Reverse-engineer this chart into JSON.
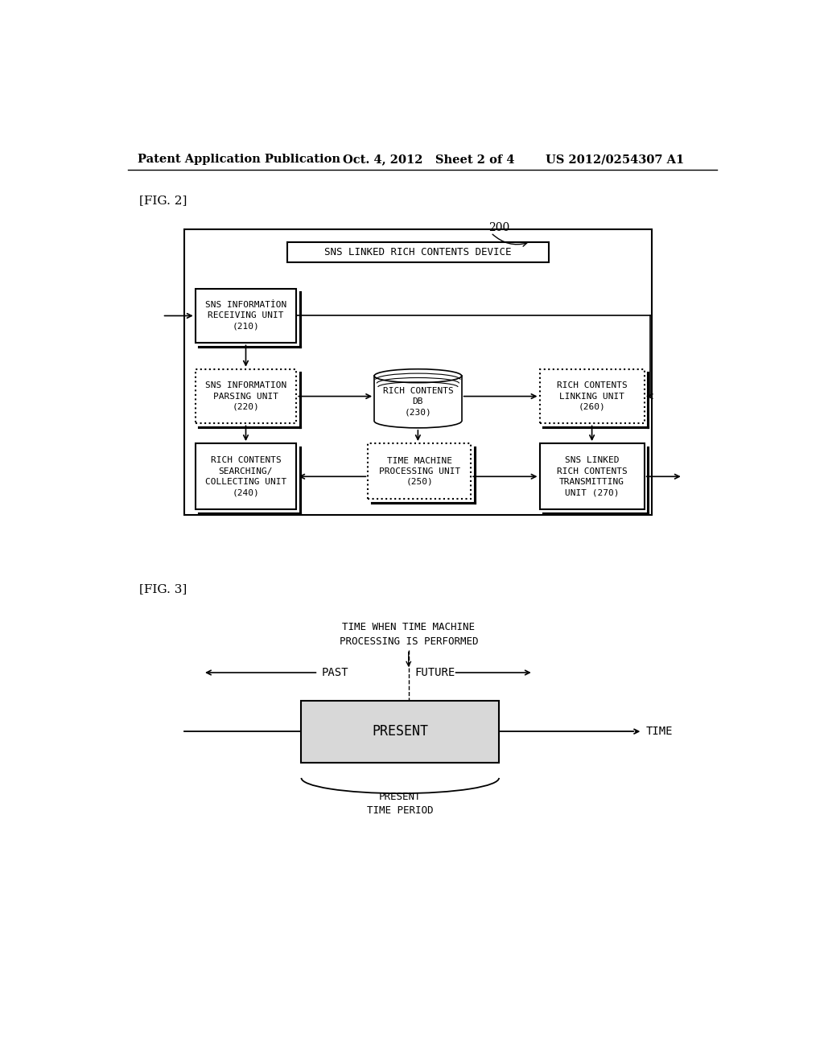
{
  "bg_color": "#ffffff",
  "header_left": "Patent Application Publication",
  "header_mid": "Oct. 4, 2012   Sheet 2 of 4",
  "header_right": "US 2012/0254307 A1",
  "fig2_label": "[FIG. 2]",
  "fig3_label": "[FIG. 3]",
  "label_200": "200",
  "box_top_text": "SNS LINKED R CH CONTENTS DEVICE",
  "box_210_text": "SNS INFORMAT ON\nRECEIVING UNIT\n(210)",
  "box_220_text": "SNS INFORMATION\nPARSING UNIT\n(220)",
  "box_230_text": "RICH CONTENTS\nDB\n(230)",
  "box_240_text": "RICH CONTENTS\nSEARCHING/\nCOLLECTING UNIT\n(240)",
  "box_250_text": "TIME MACHINE\nPROCESSING UNIT\n(250)",
  "box_260_text": "RICH CONTENTS\nLINKING UNIT\n(260)",
  "box_270_text": "SNS LINKED\nRICH CONTENTS\nTRANSMITTING\nUNIT (270)",
  "fig3_title": "TIME WHEN TIME MACHINE\nPROCESSING IS PERFORMED",
  "past_label": "PAST",
  "future_label": "FUTURE",
  "present_label": "PRESENT",
  "present_period_label": "PRESENT\nTIME PERIOD",
  "time_label": "TIME"
}
